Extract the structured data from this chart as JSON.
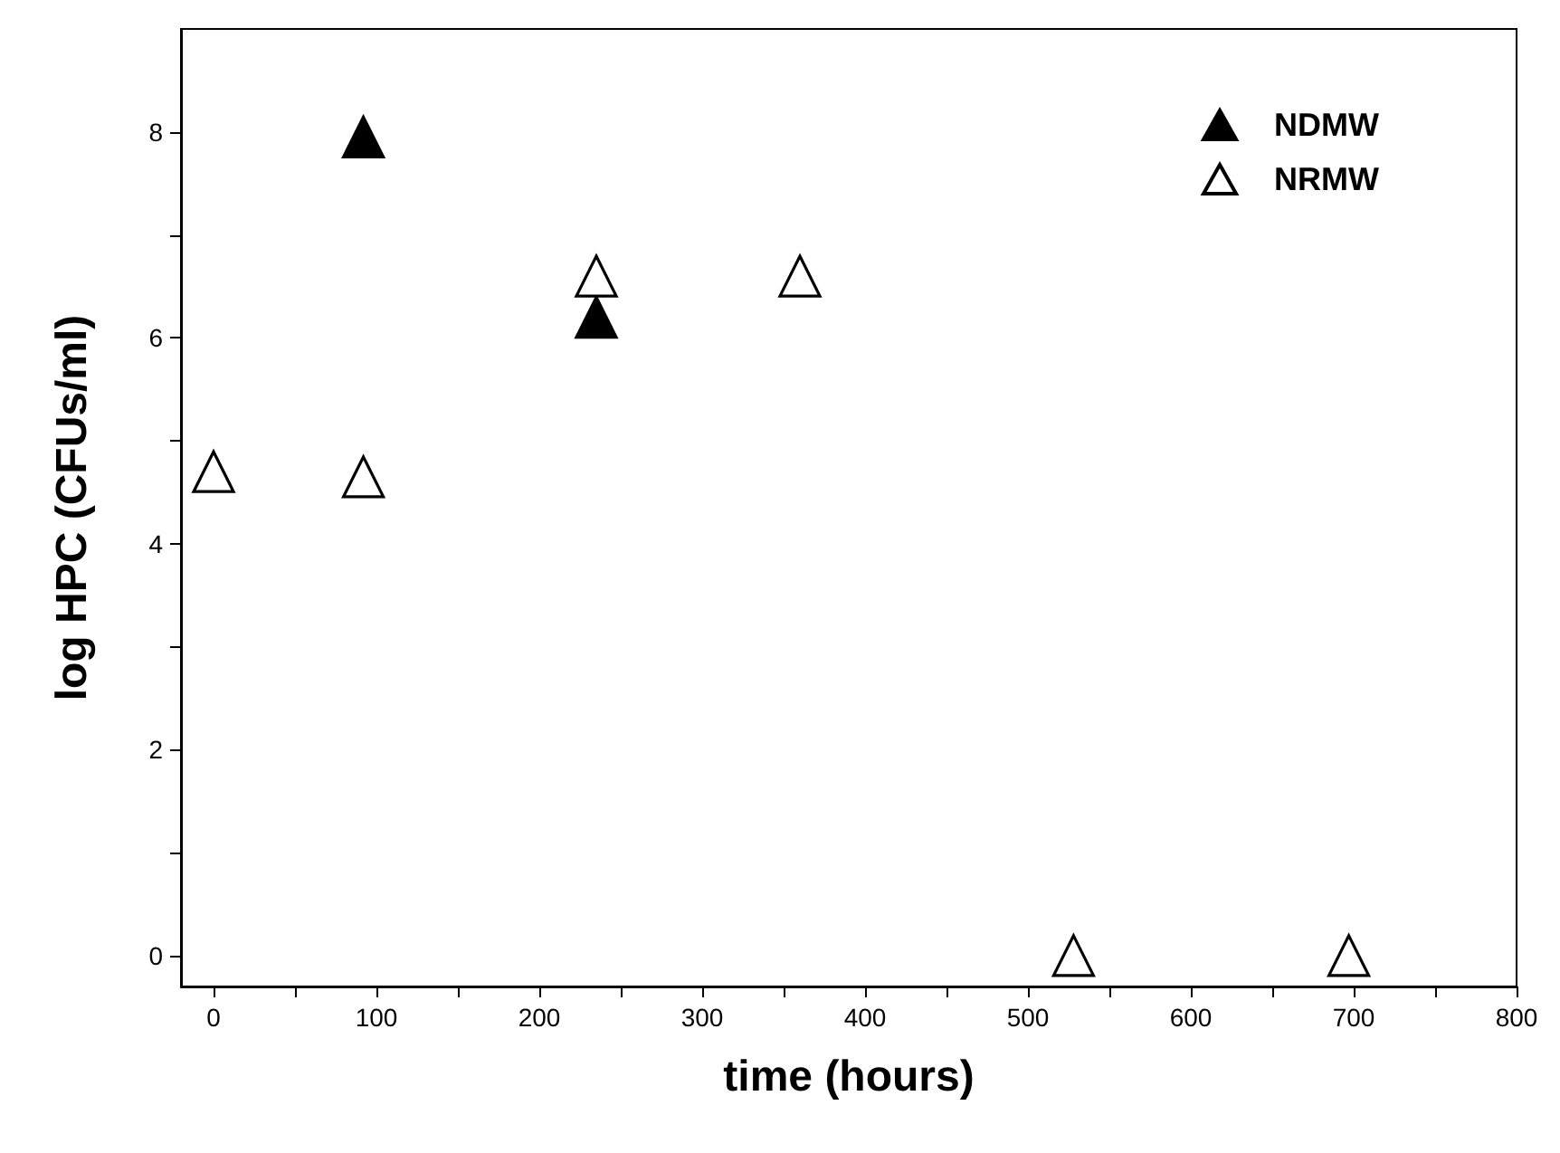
{
  "chart_data": {
    "type": "scatter",
    "xlabel": "time (hours)",
    "ylabel": "log HPC (CFUs/ml)",
    "series": [
      {
        "name": "NDMW",
        "color": "#000000",
        "x": [
          92,
          235
        ],
        "values": [
          7.95,
          6.2
        ]
      },
      {
        "name": "NRMW",
        "color": "#000000",
        "x": [
          0,
          92,
          235,
          360,
          528,
          697
        ],
        "values": [
          4.7,
          4.65,
          6.6,
          6.6,
          0,
          0
        ]
      }
    ],
    "xlim": [
      -20,
      800
    ],
    "ylim": [
      -0.3,
      9
    ],
    "xticks": [
      0,
      {
        "value": 50,
        "label": null
      },
      100,
      {
        "value": 150,
        "label": null
      },
      200,
      {
        "value": 250,
        "label": null
      },
      300,
      {
        "value": 350,
        "label": null
      },
      400,
      {
        "value": 450,
        "label": null
      },
      500,
      {
        "value": 550,
        "label": null
      },
      600,
      {
        "value": 650,
        "label": null
      },
      700,
      {
        "value": 750,
        "label": null
      },
      800
    ],
    "yticks": [
      0,
      {
        "value": 1,
        "label": null
      },
      2,
      {
        "value": 3,
        "label": null
      },
      4,
      {
        "value": 5,
        "label": null
      },
      6,
      {
        "value": 7,
        "label": null
      },
      8
    ],
    "marker": "triangle",
    "legend": "top right",
    "grid": false
  }
}
